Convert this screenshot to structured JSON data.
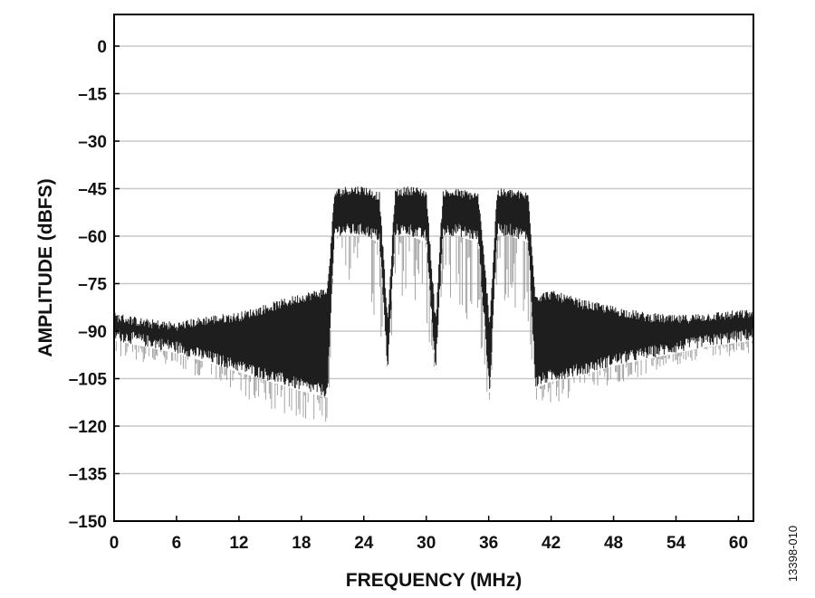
{
  "chart_data": {
    "type": "line",
    "title": "",
    "xlabel": "FREQUENCY (MHz)",
    "ylabel": "AMPLITUDE (dBFS)",
    "xlim": [
      0,
      61.44
    ],
    "ylim": [
      -150,
      10
    ],
    "xticks": [
      0,
      6,
      12,
      18,
      24,
      30,
      36,
      42,
      48,
      54,
      60
    ],
    "xtick_labels": [
      "0",
      "6",
      "12",
      "18",
      "24",
      "30",
      "36",
      "42",
      "48",
      "54",
      "60"
    ],
    "yticks": [
      0,
      -15,
      -30,
      -45,
      -60,
      -75,
      -90,
      -105,
      -120,
      -135,
      -150
    ],
    "ytick_labels": [
      "0",
      "–15",
      "–30",
      "–45",
      "–60",
      "–75",
      "–90",
      "–105",
      "–120",
      "–135",
      "–150"
    ],
    "grid": "horizontal",
    "series": [
      {
        "style": "noise-filled spectrum",
        "color": "#222222",
        "x": [
          0,
          3,
          6,
          9,
          12,
          15,
          18,
          20.5,
          21.2,
          22.5,
          24,
          25.5,
          26.3,
          27,
          28.5,
          30,
          30.9,
          31.6,
          33,
          35,
          36.1,
          36.8,
          38,
          39.8,
          40.5,
          42,
          45,
          48,
          51,
          54,
          57,
          61.44
        ],
        "upper": [
          -86,
          -88,
          -89,
          -87,
          -86,
          -83,
          -80,
          -78,
          -47,
          -46,
          -46,
          -48,
          -88,
          -47,
          -46,
          -47,
          -88,
          -47,
          -47,
          -48,
          -88,
          -47,
          -47,
          -48,
          -80,
          -79,
          -82,
          -84,
          -86,
          -87,
          -86,
          -85
        ],
        "lower": [
          -93,
          -95,
          -97,
          -100,
          -103,
          -106,
          -109,
          -111,
          -60,
          -60,
          -60,
          -62,
          -104,
          -60,
          -60,
          -62,
          -104,
          -60,
          -60,
          -62,
          -111,
          -60,
          -60,
          -62,
          -108,
          -106,
          -104,
          -101,
          -99,
          -97,
          -95,
          -93
        ],
        "min": [
          -98,
          -100,
          -102,
          -106,
          -110,
          -115,
          -118,
          -121,
          -78,
          -80,
          -82,
          -90,
          -108,
          -80,
          -85,
          -88,
          -107,
          -82,
          -85,
          -90,
          -116,
          -80,
          -85,
          -90,
          -112,
          -113,
          -110,
          -107,
          -104,
          -101,
          -99,
          -97
        ]
      }
    ],
    "annotations": [
      "13398-010"
    ]
  }
}
